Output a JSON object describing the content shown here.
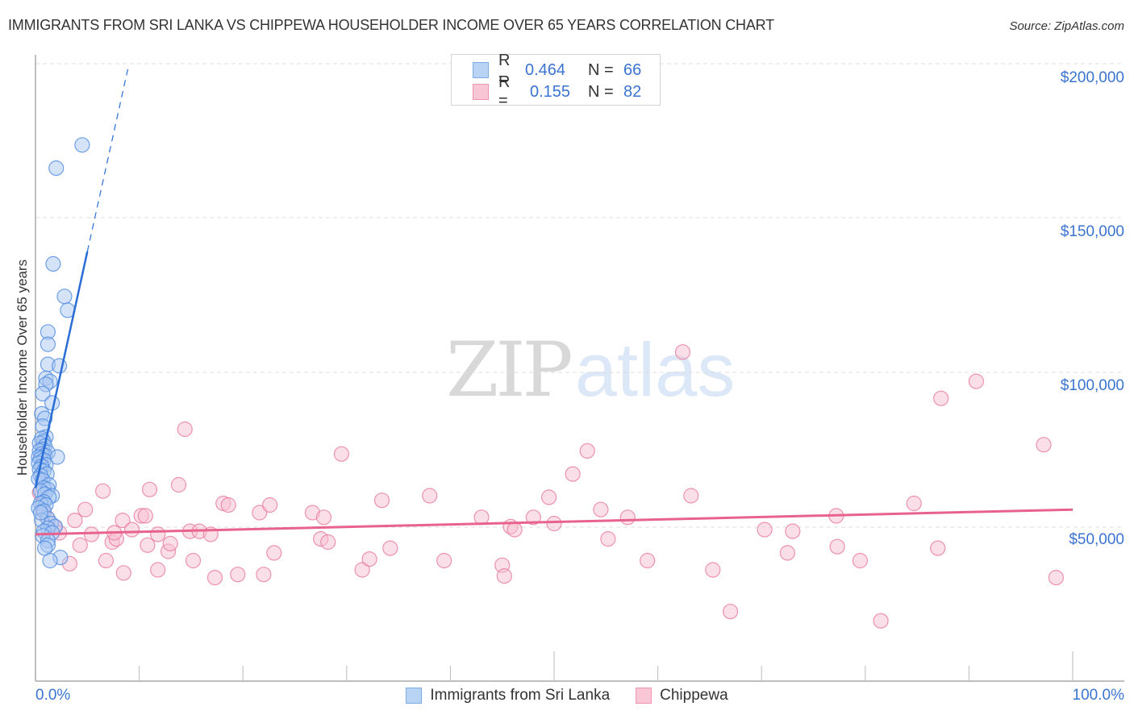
{
  "header": {
    "title": "IMMIGRANTS FROM SRI LANKA VS CHIPPEWA HOUSEHOLDER INCOME OVER 65 YEARS CORRELATION CHART",
    "source": "Source: ZipAtlas.com"
  },
  "watermark": {
    "zip": "ZIP",
    "atlas": "atlas"
  },
  "axes": {
    "ylabel": "Householder Income Over 65 years",
    "yticks": [
      "$200,000",
      "$150,000",
      "$100,000",
      "$50,000"
    ],
    "xtick_left": "0.0%",
    "xtick_right": "100.0%"
  },
  "legend_top": {
    "rows": [
      {
        "r_label": "R =",
        "r_value": "0.464",
        "n_label": "N =",
        "n_value": "66",
        "color": "#b9d3f5",
        "border": "#7faae6"
      },
      {
        "r_label": "R =",
        "r_value": "0.155",
        "n_label": "N =",
        "n_value": "82",
        "color": "#f9c6d6",
        "border": "#ee93b0"
      }
    ]
  },
  "legend_bottom": {
    "items": [
      {
        "label": "Immigrants from Sri Lanka",
        "color": "#b9d3f5",
        "border": "#7faae6"
      },
      {
        "label": "Chippewa",
        "color": "#f9c6d6",
        "border": "#ee93b0"
      }
    ]
  },
  "colors": {
    "blue_fill": "#a9c8f2",
    "blue_stroke": "#4f8be0",
    "blue_line": "#2a6dd6",
    "pink_fill": "#f7bfd1",
    "pink_stroke": "#e9799c",
    "pink_line": "#e8628e",
    "tick_text": "#3a74d0",
    "grid": "#dddddd"
  },
  "chart_data": {
    "type": "scatter",
    "title": "IMMIGRANTS FROM SRI LANKA VS CHIPPEWA HOUSEHOLDER INCOME OVER 65 YEARS CORRELATION CHART",
    "xlabel": "",
    "ylabel": "Householder Income Over 65 years",
    "xlim": [
      0,
      100
    ],
    "ylim": [
      0,
      210000
    ],
    "x_tick_labels": [
      "0.0%",
      "100.0%"
    ],
    "y_tick_labels": [
      "$50,000",
      "$100,000",
      "$150,000",
      "$200,000"
    ],
    "grid": true,
    "legend_position": "top-center & bottom",
    "series": [
      {
        "name": "Immigrants from Sri Lanka",
        "R": 0.464,
        "N": 66,
        "trend": {
          "x": [
            0.0,
            5.0
          ],
          "y": [
            62500,
            139000
          ],
          "extrapolated_to": [
            8.9,
            198000
          ]
        },
        "points": [
          [
            4.5,
            173500
          ],
          [
            2.0,
            166000
          ],
          [
            1.7,
            135000
          ],
          [
            2.8,
            124500
          ],
          [
            3.1,
            120000
          ],
          [
            1.2,
            113000
          ],
          [
            1.2,
            109000
          ],
          [
            1.2,
            102500
          ],
          [
            2.3,
            102000
          ],
          [
            1.0,
            98000
          ],
          [
            1.4,
            97000
          ],
          [
            1.0,
            96000
          ],
          [
            0.7,
            93000
          ],
          [
            1.6,
            90000
          ],
          [
            0.6,
            86500
          ],
          [
            0.9,
            85000
          ],
          [
            0.7,
            82500
          ],
          [
            1.0,
            79000
          ],
          [
            0.6,
            78500
          ],
          [
            0.8,
            77500
          ],
          [
            0.4,
            77000
          ],
          [
            0.9,
            76000
          ],
          [
            0.7,
            75000
          ],
          [
            0.4,
            74500
          ],
          [
            1.2,
            74000
          ],
          [
            0.6,
            73500
          ],
          [
            0.9,
            73000
          ],
          [
            0.3,
            72500
          ],
          [
            2.1,
            72500
          ],
          [
            0.5,
            72000
          ],
          [
            0.8,
            71500
          ],
          [
            0.3,
            70500
          ],
          [
            1.0,
            70000
          ],
          [
            0.6,
            69500
          ],
          [
            0.4,
            68500
          ],
          [
            0.8,
            68000
          ],
          [
            1.1,
            67000
          ],
          [
            0.5,
            66500
          ],
          [
            0.3,
            65500
          ],
          [
            0.7,
            65000
          ],
          [
            1.3,
            63500
          ],
          [
            0.8,
            62500
          ],
          [
            1.2,
            62000
          ],
          [
            0.5,
            61500
          ],
          [
            0.9,
            60500
          ],
          [
            1.6,
            60000
          ],
          [
            1.3,
            59500
          ],
          [
            0.8,
            58000
          ],
          [
            0.5,
            57500
          ],
          [
            1.0,
            57000
          ],
          [
            0.3,
            56000
          ],
          [
            0.8,
            55000
          ],
          [
            1.2,
            52500
          ],
          [
            0.6,
            52000
          ],
          [
            1.5,
            51000
          ],
          [
            1.9,
            50000
          ],
          [
            1.2,
            49500
          ],
          [
            0.8,
            48500
          ],
          [
            1.6,
            48000
          ],
          [
            0.7,
            47000
          ],
          [
            1.2,
            45500
          ],
          [
            1.2,
            44000
          ],
          [
            0.9,
            43000
          ],
          [
            2.4,
            40000
          ],
          [
            1.4,
            39000
          ],
          [
            0.5,
            54500
          ]
        ]
      },
      {
        "name": "Chippewa",
        "R": 0.155,
        "N": 82,
        "trend": {
          "x": [
            0.0,
            100.0
          ],
          "y": [
            47500,
            55500
          ]
        },
        "points": [
          [
            0.4,
            61000
          ],
          [
            0.7,
            55500
          ],
          [
            1.1,
            53000
          ],
          [
            1.8,
            50000
          ],
          [
            2.3,
            48000
          ],
          [
            3.3,
            38000
          ],
          [
            3.8,
            52000
          ],
          [
            4.3,
            44000
          ],
          [
            4.8,
            55500
          ],
          [
            5.4,
            47500
          ],
          [
            6.5,
            61500
          ],
          [
            6.8,
            39000
          ],
          [
            7.4,
            45000
          ],
          [
            7.8,
            46000
          ],
          [
            8.5,
            35000
          ],
          [
            8.4,
            52000
          ],
          [
            9.3,
            49000
          ],
          [
            10.2,
            53500
          ],
          [
            10.6,
            53500
          ],
          [
            10.8,
            44000
          ],
          [
            11.8,
            36000
          ],
          [
            11.8,
            47500
          ],
          [
            12.8,
            42000
          ],
          [
            13.0,
            44500
          ],
          [
            13.8,
            63500
          ],
          [
            14.4,
            81500
          ],
          [
            14.9,
            48500
          ],
          [
            15.2,
            39000
          ],
          [
            15.8,
            48500
          ],
          [
            16.9,
            47500
          ],
          [
            17.3,
            33500
          ],
          [
            18.1,
            57500
          ],
          [
            18.6,
            57000
          ],
          [
            19.5,
            34500
          ],
          [
            21.6,
            54500
          ],
          [
            22.0,
            34500
          ],
          [
            22.6,
            57000
          ],
          [
            23.0,
            41500
          ],
          [
            26.7,
            54500
          ],
          [
            27.5,
            46000
          ],
          [
            28.2,
            45000
          ],
          [
            27.8,
            53000
          ],
          [
            29.5,
            73500
          ],
          [
            31.5,
            36000
          ],
          [
            32.2,
            39500
          ],
          [
            33.4,
            58500
          ],
          [
            34.2,
            43000
          ],
          [
            38.0,
            60000
          ],
          [
            39.4,
            39000
          ],
          [
            43.0,
            53000
          ],
          [
            45.0,
            37500
          ],
          [
            45.2,
            34000
          ],
          [
            45.8,
            50000
          ],
          [
            46.2,
            49000
          ],
          [
            48.0,
            53000
          ],
          [
            49.5,
            59500
          ],
          [
            50.0,
            51000
          ],
          [
            51.8,
            67000
          ],
          [
            53.2,
            74500
          ],
          [
            54.5,
            55500
          ],
          [
            55.2,
            46000
          ],
          [
            57.1,
            53000
          ],
          [
            59.0,
            39000
          ],
          [
            62.4,
            106500
          ],
          [
            63.2,
            60000
          ],
          [
            65.3,
            36000
          ],
          [
            67.0,
            22500
          ],
          [
            70.3,
            49000
          ],
          [
            72.5,
            41500
          ],
          [
            73.0,
            48500
          ],
          [
            77.2,
            53500
          ],
          [
            77.3,
            43500
          ],
          [
            79.5,
            39000
          ],
          [
            81.5,
            19500
          ],
          [
            84.7,
            57500
          ],
          [
            87.0,
            43000
          ],
          [
            87.3,
            91500
          ],
          [
            90.7,
            97000
          ],
          [
            97.2,
            76500
          ],
          [
            98.4,
            33500
          ],
          [
            11.0,
            62000
          ],
          [
            7.6,
            48000
          ]
        ]
      }
    ]
  }
}
